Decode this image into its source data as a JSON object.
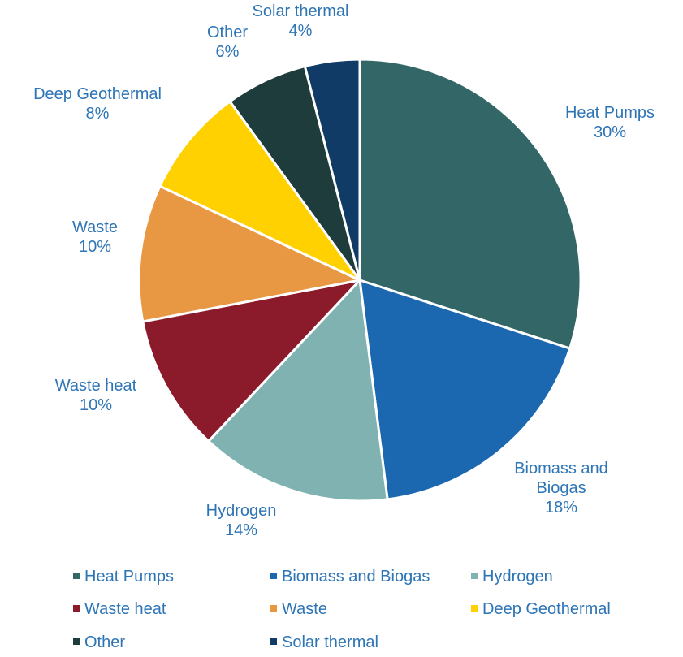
{
  "chart_data": {
    "type": "pie",
    "title": "",
    "legend_position": "bottom",
    "label_color": "#2e75b6",
    "slices": [
      {
        "name": "Heat Pumps",
        "value": 30,
        "label": "30%",
        "color": "#336666"
      },
      {
        "name": "Biomass and Biogas",
        "value": 18,
        "label": "18%",
        "color": "#1b67b0",
        "label_lines": [
          "Biomass and",
          "Biogas"
        ]
      },
      {
        "name": "Hydrogen",
        "value": 14,
        "label": "14%",
        "color": "#80b2b2"
      },
      {
        "name": "Waste heat",
        "value": 10,
        "label": "10%",
        "color": "#8b1a2a"
      },
      {
        "name": "Waste",
        "value": 10,
        "label": "10%",
        "color": "#e89843"
      },
      {
        "name": "Deep Geothermal",
        "value": 8,
        "label": "8%",
        "color": "#ffd100"
      },
      {
        "name": "Other",
        "value": 6,
        "label": "6%",
        "color": "#1f3c3c"
      },
      {
        "name": "Solar thermal",
        "value": 4,
        "label": "4%",
        "color": "#0f3b66"
      }
    ]
  }
}
